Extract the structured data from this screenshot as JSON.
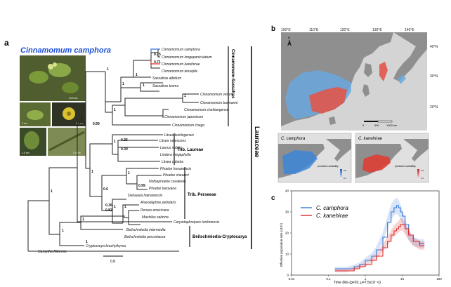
{
  "panel_a": {
    "label": "a",
    "title": "Cinnamomum camphora",
    "photo_scales": [
      "10.0 cm",
      "1 cm",
      "0.1 cm",
      "1.0 cm",
      "1.0 cm"
    ],
    "taxa": [
      "Cinnamomum camphora",
      "Cinnamomum longepaniculatum",
      "Cinnamomum kanehirae",
      "Cinnamomum tenuipile",
      "Sassafras albidum",
      "Sassafras tzumu",
      "Cinnamomum verum",
      "Cinnamomum burmanni",
      "Cinnamomum chekiangense",
      "Cinnamomum japonicum",
      "Cinnamomum chago",
      "Litsea tsinlingensis",
      "Litsea rubescens",
      "Laurus nobilis",
      "Lindera megaphylla",
      "Litsea cubeba",
      "Phoebe hunanensis",
      "Phoebe sheareri",
      "Nothaphoebe cavaleriei",
      "Phoebe tavoyana",
      "Dehaasia hainanensis",
      "Alseodaphne petiolaris",
      "Persea americana",
      "Machilus salicina",
      "Caryodaphnopsis tonkinensis",
      "Beilschmiedia intermedia",
      "Beilschmiedia percoriacea",
      "Cryptocarya brachythyrsa",
      "Cassytha filiformis"
    ],
    "support_values": [
      "0.75",
      "0.71",
      "1",
      "1",
      "1",
      "1",
      "1",
      "0.99",
      "1",
      "0.25",
      "0.39",
      "1",
      "1",
      "0.99",
      "0.6",
      "1",
      "1",
      "0.36",
      "0.82",
      "1",
      "1",
      "1",
      "1",
      "1",
      "1"
    ],
    "clades": {
      "cinnamomum_sassafras": "Cinnamomum-Sassafras",
      "laureae": "Trib. Laureae",
      "perseeae": "Trib. Perseeae",
      "beilschmiedia": "Beilschmiedia-Cryptocarya",
      "family": "Lauraceae"
    },
    "scale_bar": "0.8"
  },
  "panel_b": {
    "label": "b",
    "longitudes": [
      "100°E",
      "110°E",
      "120°E",
      "130°E",
      "140°E"
    ],
    "latitudes": [
      "40°N",
      "30°N",
      "20°N"
    ],
    "north": "N",
    "scale": [
      "0",
      "500",
      "1000 km"
    ],
    "subpanels": [
      {
        "title": "C. camphora",
        "legend": "predicted suitability",
        "high": "0.9",
        "low": "0.1",
        "color": "#2f7fd6"
      },
      {
        "title": "C. kanehirae",
        "legend": "predicted suitability",
        "high": "0.9",
        "low": "0.1",
        "color": "#e0382a"
      }
    ]
  },
  "panel_c": {
    "label": "c",
    "chart_data": {
      "type": "line",
      "title": "",
      "xlabel": "Time (Ma (g=20, μ=7.5x10⁻⁹))",
      "ylabel": "Effective population size (x10⁴)",
      "xscale": "log",
      "xlim": [
        0.01,
        100
      ],
      "ylim": [
        0,
        40
      ],
      "xticks": [
        "0.01",
        "0.1",
        "1",
        "10",
        "100"
      ],
      "yticks": [
        "0",
        "10",
        "20",
        "30",
        "40"
      ],
      "series": [
        {
          "name": "C. camphora",
          "color": "#3a78d8",
          "x": [
            0.15,
            0.3,
            0.5,
            0.7,
            1.0,
            1.5,
            2.0,
            3.0,
            4.0,
            5.0,
            6.0,
            7.0,
            8.0,
            9.0,
            10,
            12,
            15,
            20,
            30,
            40
          ],
          "y": [
            3,
            3,
            4,
            5,
            7,
            9,
            12,
            18,
            25,
            30,
            32,
            33,
            32,
            30,
            28,
            24,
            19,
            16,
            15,
            15
          ]
        },
        {
          "name": "C. kanehirae",
          "color": "#e02828",
          "x": [
            0.15,
            0.3,
            0.5,
            0.7,
            1.0,
            1.5,
            2.0,
            3.0,
            4.0,
            5.0,
            6.0,
            7.0,
            8.0,
            9.0,
            10,
            12,
            15,
            20,
            30,
            40
          ],
          "y": [
            2,
            2,
            3,
            4,
            5,
            7,
            9,
            13,
            16,
            19,
            21,
            22,
            23,
            24,
            24,
            22,
            19,
            16,
            14,
            14
          ]
        }
      ]
    }
  }
}
